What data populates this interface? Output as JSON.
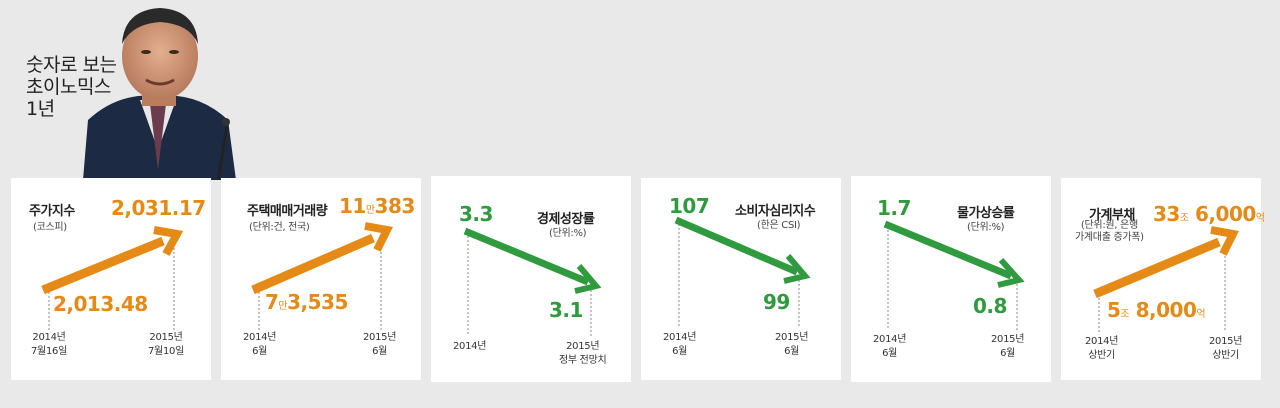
{
  "header": {
    "title_lines": [
      "숫자로 보는",
      "초이노믹스",
      "1년"
    ]
  },
  "colors": {
    "orange": "#e58a16",
    "green": "#2f9a3e"
  },
  "cards": [
    {
      "title": "주가지수",
      "sub": "(코스피)",
      "start_value": "2,013.48",
      "end_value": "2,031.17",
      "start_date": [
        "2014년",
        "7월16일"
      ],
      "end_date": [
        "2015년",
        "7월10일"
      ]
    },
    {
      "title": "주택매매거래량",
      "sub": "(단위:건, 전국)",
      "start_value_big1": "7",
      "start_value_unit": "만",
      "start_value_big2": "3,535",
      "end_value_big1": "11",
      "end_value_unit": "만",
      "end_value_big2": "383",
      "start_date": [
        "2014년",
        "6월"
      ],
      "end_date": [
        "2015년",
        "6월"
      ]
    },
    {
      "title": "경제성장률",
      "sub": "(단위:%)",
      "start_value": "3.3",
      "end_value": "3.1",
      "start_date": [
        "2014년"
      ],
      "end_date": [
        "2015년",
        "정부 전망치"
      ]
    },
    {
      "title": "소비자심리지수",
      "sub": "(한은 CSI)",
      "start_value": "107",
      "end_value": "99",
      "start_date": [
        "2014년",
        "6월"
      ],
      "end_date": [
        "2015년",
        "6월"
      ]
    },
    {
      "title": "물가상승률",
      "sub": "(단위:%)",
      "start_value": "1.7",
      "end_value": "0.8",
      "start_date": [
        "2014년",
        "6월"
      ],
      "end_date": [
        "2015년",
        "6월"
      ]
    },
    {
      "title": "가계부채",
      "sub_lines": [
        "(단위:원, 은행",
        "가계대출 증가폭)"
      ],
      "start_value_big1": "5",
      "start_value_unit1": "조",
      "start_value_big2": "8,000",
      "start_value_unit2": "억",
      "end_value_big1": "33",
      "end_value_unit1": "조",
      "end_value_big2": "6,000",
      "end_value_unit2": "억",
      "start_date": [
        "2014년",
        "상반기"
      ],
      "end_date": [
        "2015년",
        "상반기"
      ]
    }
  ]
}
